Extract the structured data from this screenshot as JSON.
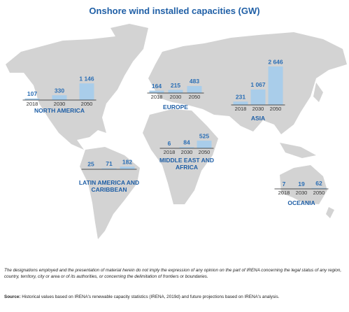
{
  "title": "Onshore wind installed capacities (GW)",
  "chart_data": [
    {
      "type": "bar",
      "title": "NORTH AMERICA",
      "categories": [
        "2018",
        "2030",
        "2050"
      ],
      "values": [
        107,
        330,
        1146
      ],
      "value_labels": [
        "107",
        "330",
        "1 146"
      ],
      "color": "#a9cdea"
    },
    {
      "type": "bar",
      "title": "EUROPE",
      "categories": [
        "2018",
        "2030",
        "2050"
      ],
      "values": [
        164,
        215,
        483
      ],
      "color": "#a9cdea"
    },
    {
      "type": "bar",
      "title": "ASIA",
      "categories": [
        "2018",
        "2030",
        "2050"
      ],
      "values": [
        231,
        1067,
        2646
      ],
      "value_labels": [
        "231",
        "1 067",
        "2 646"
      ],
      "color": "#a9cdea"
    },
    {
      "type": "bar",
      "title": "MIDDLE EAST AND AFRICA",
      "categories": [
        "2018",
        "2030",
        "2050"
      ],
      "values": [
        6,
        84,
        525
      ],
      "color": "#a9cdea"
    },
    {
      "type": "bar",
      "title": "LATIN AMERICA AND CARIBBEAN",
      "values": [
        25,
        71,
        182
      ],
      "color": "#a9cdea"
    },
    {
      "type": "bar",
      "title": "OCEANIA",
      "categories": [
        "2018",
        "2030",
        "2050"
      ],
      "values": [
        7,
        19,
        62
      ],
      "color": "#a9cdea"
    }
  ],
  "notes": {
    "disclaimer": "The designations employed and the presentation of material herein do not imply the expression of any opinion on the part of IRENA concerning the legal status of any region, country, territory, city or area or of its authorities, or concerning the delimitation of frontiers or boundaries.",
    "source_label": "Source:",
    "source_text": "Historical values based on IRENA's renewable capacity statistics (IRENA, 2019d) and future projections based on IRENA's analysis."
  }
}
